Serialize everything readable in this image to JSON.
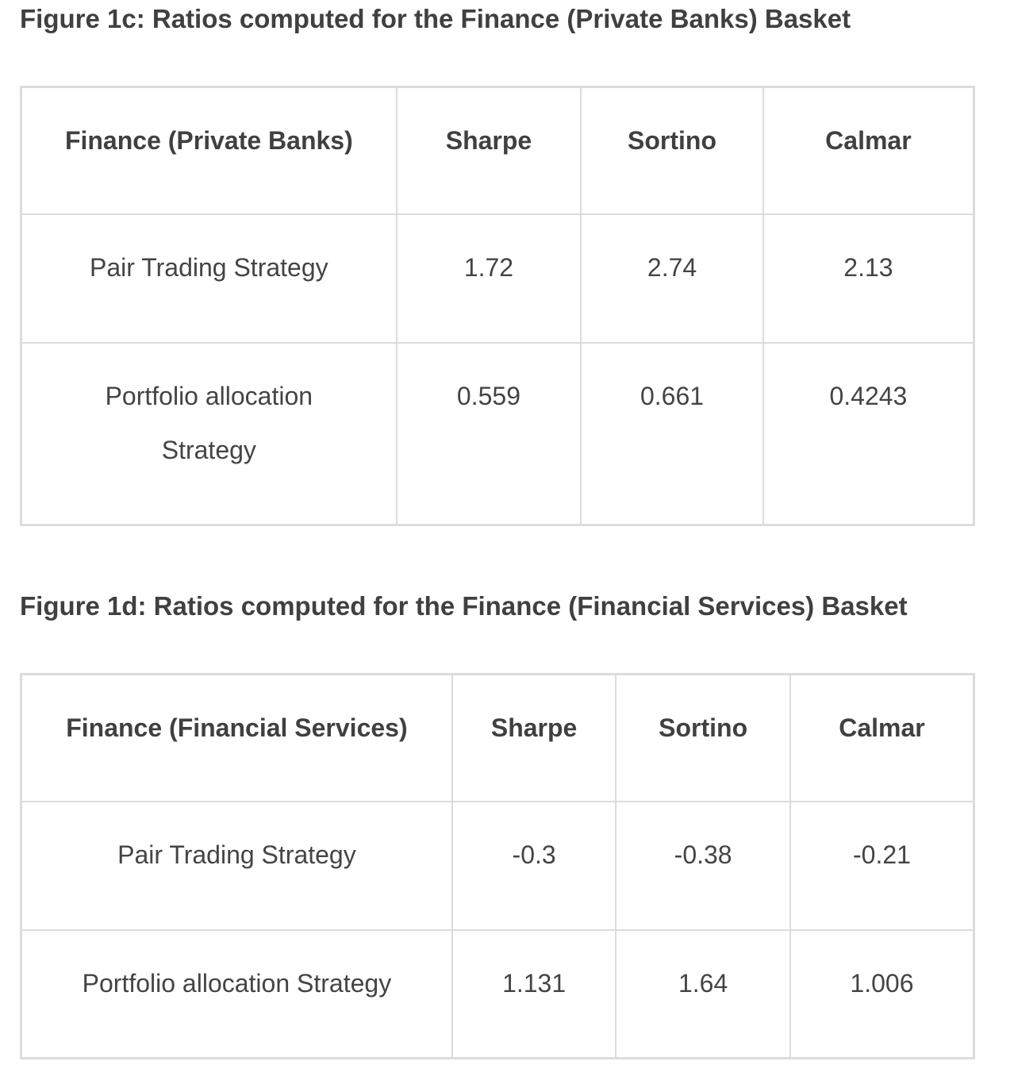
{
  "figures": [
    {
      "caption": "Figure 1c: Ratios computed for the Finance (Private Banks) Basket",
      "header": [
        "Finance (Private Banks)",
        "Sharpe",
        "Sortino",
        "Calmar"
      ],
      "rows": [
        [
          "Pair Trading Strategy",
          "1.72",
          "2.74",
          "2.13"
        ],
        [
          "Portfolio allocation Strategy",
          "0.559",
          "0.661",
          "0.4243"
        ]
      ]
    },
    {
      "caption": "Figure 1d: Ratios computed for the Finance (Financial Services) Basket",
      "header": [
        "Finance (Financial Services)",
        "Sharpe",
        "Sortino",
        "Calmar"
      ],
      "rows": [
        [
          "Pair Trading Strategy",
          "-0.3",
          "-0.38",
          "-0.21"
        ],
        [
          "Portfolio allocation Strategy",
          "1.131",
          "1.64",
          "1.006"
        ]
      ]
    }
  ],
  "colors": {
    "border": "#dcdcdc",
    "text": "#404040"
  }
}
